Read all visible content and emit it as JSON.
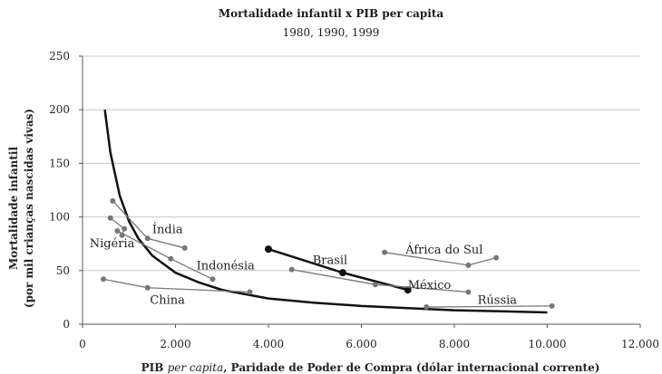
{
  "chart_data": {
    "type": "scatter",
    "title": "Mortalidade infantil x PIB per capita",
    "subtitle": "1980, 1990, 1999",
    "ylabel_line1": "Mortalidade infantil",
    "ylabel_line2": "(por mil crianças nascidas vivas)",
    "xlabel_main": "PIB ",
    "xlabel_italic": "per capita",
    "xlabel_rest": ", Paridade de Poder de Compra (dólar internacional corrente)",
    "xlim": [
      0,
      12000
    ],
    "ylim": [
      0,
      250
    ],
    "xticks": [
      0,
      2000,
      4000,
      6000,
      8000,
      10000,
      12000
    ],
    "xtick_labels": [
      "0",
      "2.000",
      "4.000",
      "6.000",
      "8.000",
      "10.000",
      "12.000"
    ],
    "yticks": [
      0,
      50,
      100,
      150,
      200,
      250
    ],
    "ytick_labels": [
      "0",
      "50",
      "100",
      "150",
      "200",
      "250"
    ],
    "grid": true,
    "trend_curve": {
      "type": "reciprocal",
      "points": [
        [
          480,
          200
        ],
        [
          600,
          160
        ],
        [
          800,
          120
        ],
        [
          1000,
          96
        ],
        [
          1200,
          80
        ],
        [
          1500,
          64
        ],
        [
          2000,
          48
        ],
        [
          2500,
          39
        ],
        [
          3000,
          32
        ],
        [
          4000,
          24
        ],
        [
          5000,
          20
        ],
        [
          6000,
          17
        ],
        [
          7000,
          15
        ],
        [
          8000,
          13
        ],
        [
          9000,
          12
        ],
        [
          10000,
          11
        ]
      ]
    },
    "series": [
      {
        "name": "Índia",
        "points": [
          [
            650,
            115
          ],
          [
            1400,
            80
          ],
          [
            2200,
            71
          ]
        ]
      },
      {
        "name": "Nigéria",
        "points": [
          [
            600,
            99
          ],
          [
            900,
            89
          ],
          [
            850,
            83
          ]
        ]
      },
      {
        "name": "Indonésia",
        "points": [
          [
            750,
            87
          ],
          [
            1900,
            61
          ],
          [
            2800,
            42
          ]
        ]
      },
      {
        "name": "China",
        "points": [
          [
            450,
            42
          ],
          [
            1400,
            34
          ],
          [
            3600,
            30
          ]
        ]
      },
      {
        "name": "Brasil",
        "points": [
          [
            4000,
            70
          ],
          [
            5600,
            48
          ],
          [
            7000,
            32
          ]
        ]
      },
      {
        "name": "África do Sul",
        "points": [
          [
            6500,
            67
          ],
          [
            8300,
            55
          ],
          [
            8900,
            62
          ]
        ]
      },
      {
        "name": "México",
        "points": [
          [
            4500,
            51
          ],
          [
            6300,
            37
          ],
          [
            8300,
            30
          ]
        ]
      },
      {
        "name": "Rússia",
        "points": [
          [
            7400,
            16
          ],
          [
            10100,
            17
          ]
        ]
      }
    ],
    "labels": [
      {
        "text": "Índia",
        "x": 1500,
        "y": 85
      },
      {
        "text": "Nigéria",
        "x": 150,
        "y": 72
      },
      {
        "text": "Indonésia",
        "x": 2450,
        "y": 51
      },
      {
        "text": "China",
        "x": 1450,
        "y": 19
      },
      {
        "text": "Brasil",
        "x": 4950,
        "y": 56
      },
      {
        "text": "África do Sul",
        "x": 6950,
        "y": 66
      },
      {
        "text": "México",
        "x": 7000,
        "y": 33
      },
      {
        "text": "Rússia",
        "x": 8500,
        "y": 19
      }
    ]
  }
}
